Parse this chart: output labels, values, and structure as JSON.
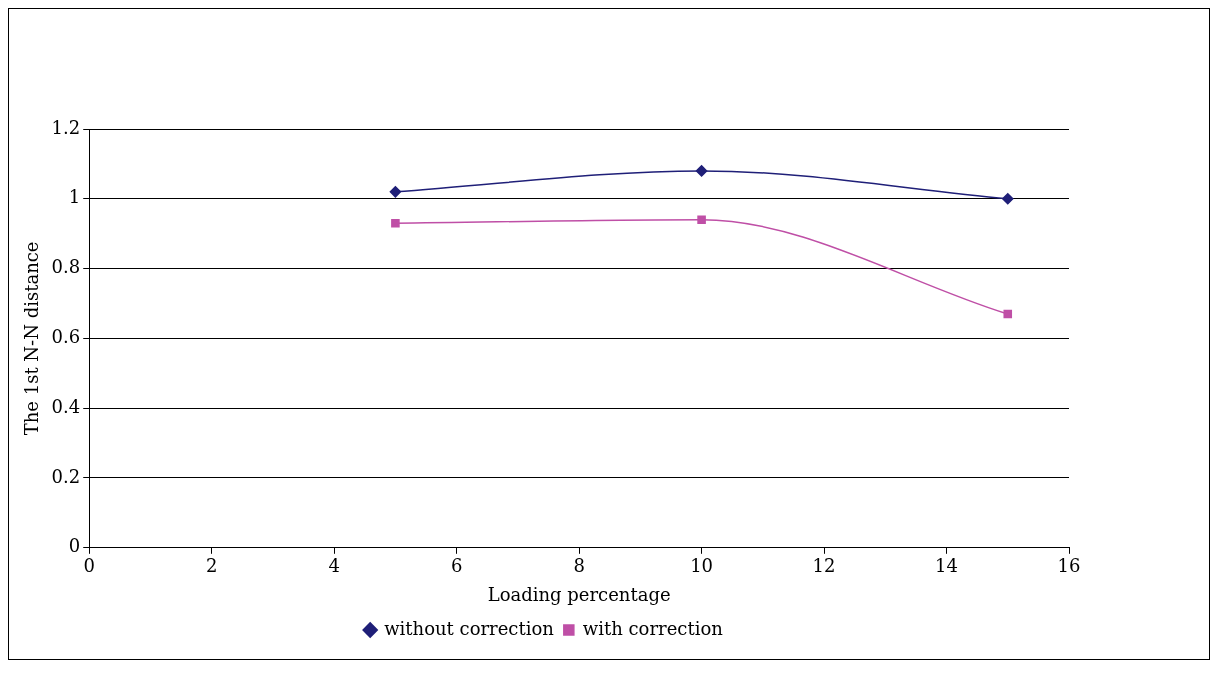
{
  "chart_data": {
    "type": "line",
    "xlabel": "Loading percentage",
    "ylabel": "The 1st N-N distance",
    "xlim": [
      0,
      16
    ],
    "xticks": [
      0,
      2,
      4,
      6,
      8,
      10,
      12,
      14,
      16
    ],
    "ylim": [
      0,
      1.2
    ],
    "yticks": [
      0,
      0.2,
      0.4,
      0.6,
      0.8,
      1,
      1.2
    ],
    "grid": "y",
    "legend": "bottom",
    "series": [
      {
        "name": "without correction",
        "color": "#1f1f78",
        "marker": "diamond",
        "x": [
          5,
          10,
          15
        ],
        "values": [
          1.02,
          1.08,
          1.0
        ]
      },
      {
        "name": "with correction",
        "color": "#bf4fa6",
        "marker": "square",
        "x": [
          5,
          10,
          15
        ],
        "values": [
          0.93,
          0.94,
          0.67
        ]
      }
    ]
  }
}
